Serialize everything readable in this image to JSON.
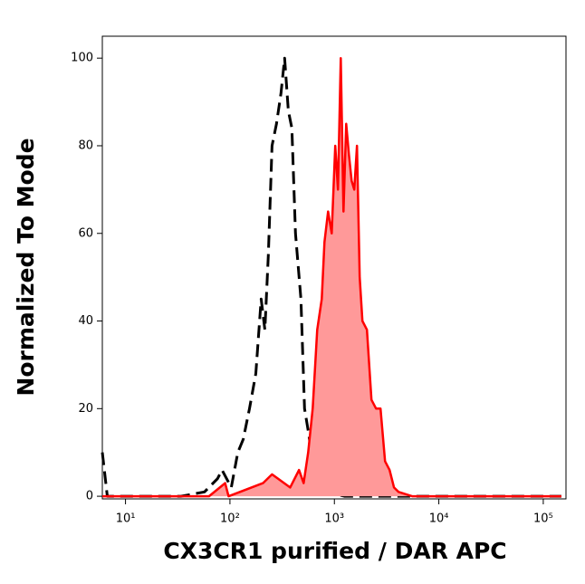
{
  "chart_data": {
    "type": "histogram-overlay",
    "xlabel": "CX3CR1 purified / DAR APC",
    "ylabel": "Normalized To Mode",
    "xscale": "log",
    "xlim": [
      6,
      165000
    ],
    "ylim": [
      -0.6,
      105
    ],
    "xticks": [
      {
        "value": 10,
        "label": "10¹"
      },
      {
        "value": 100,
        "label": "10²"
      },
      {
        "value": 1000,
        "label": "10³"
      },
      {
        "value": 10000,
        "label": "10⁴"
      },
      {
        "value": 100000,
        "label": "10⁵"
      }
    ],
    "yticks": [
      0,
      20,
      40,
      60,
      80,
      100
    ],
    "series": [
      {
        "color": "#000000",
        "style": "dashed",
        "fill": null,
        "x": [
          6,
          6.7,
          12.7,
          34,
          57,
          76,
          84,
          103,
          119,
          134,
          154,
          177,
          199,
          216,
          233,
          253,
          279,
          308,
          334,
          362,
          392,
          424,
          478,
          518,
          561,
          620,
          685,
          835,
          1245,
          1855,
          149000
        ],
        "values": [
          10,
          0,
          0,
          0,
          1,
          4,
          6,
          2,
          10,
          13,
          20,
          28,
          45,
          38,
          55,
          80,
          85,
          92,
          100,
          88,
          84,
          60,
          45,
          20,
          15,
          8,
          2,
          1,
          0,
          0,
          0
        ]
      },
      {
        "color": "#ff0000",
        "style": "solid",
        "fill": "#ff9999",
        "x": [
          6,
          63,
          90,
          97,
          207,
          253,
          377,
          459,
          508,
          561,
          620,
          685,
          757,
          803,
          870,
          942,
          1020,
          1083,
          1151,
          1222,
          1297,
          1377,
          1462,
          1551,
          1646,
          1747,
          1855,
          2051,
          2267,
          2506,
          2767,
          3057,
          3377,
          3727,
          4118,
          5556,
          149000
        ],
        "values": [
          0,
          0,
          3,
          0,
          3,
          5,
          2,
          6,
          3,
          10,
          20,
          38,
          45,
          58,
          65,
          60,
          80,
          70,
          100,
          65,
          85,
          78,
          72,
          70,
          80,
          50,
          40,
          38,
          22,
          20,
          20,
          8,
          6,
          2,
          1,
          0,
          0
        ]
      }
    ]
  }
}
